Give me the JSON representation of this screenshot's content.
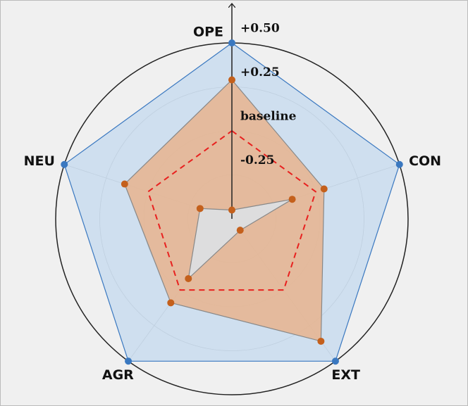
{
  "chart_data": {
    "type": "radar",
    "categories": [
      "OPE",
      "CON",
      "EXT",
      "AGR",
      "NEU"
    ],
    "rlim": [
      -0.5,
      0.5
    ],
    "rticks": [
      {
        "value": -0.25,
        "label": "-0.25"
      },
      {
        "value": 0,
        "label": "baseline"
      },
      {
        "value": 0.25,
        "label": "+0.25"
      },
      {
        "value": 0.5,
        "label": "+0.50"
      }
    ],
    "series": [
      {
        "color": "#3a78c0",
        "fill": "#c9dcef",
        "values": [
          0.5,
          0.5,
          0.5,
          0.5,
          0.5
        ]
      },
      {
        "color": "#c4601c",
        "fill": "#e8b48e",
        "values": [
          0.29,
          0.05,
          0.36,
          0.09,
          0.14
        ]
      },
      {
        "color": "#c4601c",
        "fill": "#dce3ea",
        "values": [
          -0.45,
          -0.14,
          -0.42,
          -0.08,
          -0.31
        ]
      },
      {
        "color": "#e8211f",
        "style": "dashed",
        "values": [
          0,
          0,
          0,
          0,
          0
        ]
      }
    ]
  }
}
